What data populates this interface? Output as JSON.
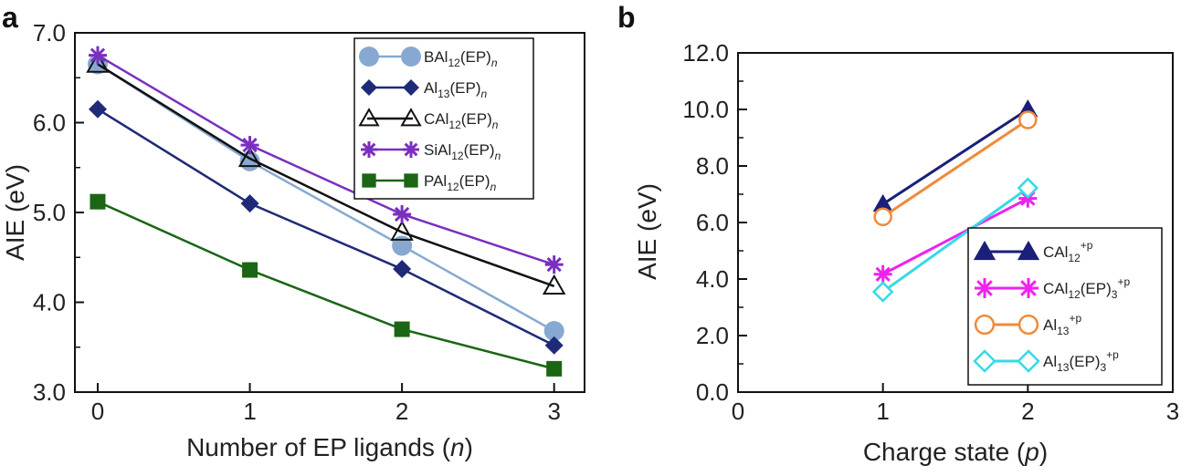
{
  "chart_data": [
    {
      "panel": "a",
      "type": "line",
      "xlabel_main": "Number of EP ligands (",
      "xlabel_var": "n",
      "xlabel_end": ")",
      "ylabel": "AIE (eV)",
      "x": [
        0,
        1,
        2,
        3
      ],
      "xticks": [
        "0",
        "1",
        "2",
        "3"
      ],
      "ylim": [
        3.0,
        7.0
      ],
      "yticks": [
        "3.0",
        "4.0",
        "5.0",
        "6.0",
        "7.0"
      ],
      "legend_position": "top-right",
      "series": [
        {
          "name": "BAl",
          "sub": "12",
          "suffix": "(EP)",
          "var": "n",
          "color": "#87a9d1",
          "marker": "circle",
          "values": [
            6.65,
            5.57,
            4.63,
            3.68
          ]
        },
        {
          "name": "Al",
          "sub": "13",
          "suffix": "(EP)",
          "var": "n",
          "color": "#1f2a78",
          "marker": "diamond",
          "values": [
            6.15,
            5.1,
            4.37,
            3.52
          ]
        },
        {
          "name": "CAl",
          "sub": "12",
          "suffix": "(EP)",
          "var": "n",
          "color": "#111111",
          "marker": "triangle-open",
          "values": [
            6.65,
            5.6,
            4.78,
            4.18
          ]
        },
        {
          "name": "SiAl",
          "sub": "12",
          "suffix": "(EP)",
          "var": "n",
          "color": "#7a2fbf",
          "marker": "asterisk",
          "values": [
            6.75,
            5.75,
            4.98,
            4.42
          ]
        },
        {
          "name": "PAl",
          "sub": "12",
          "suffix": "(EP)",
          "var": "n",
          "color": "#1a6614",
          "marker": "square",
          "values": [
            5.12,
            4.36,
            3.7,
            3.26
          ]
        }
      ]
    },
    {
      "panel": "b",
      "type": "line",
      "xlabel_main": "Charge state (",
      "xlabel_var": "p",
      "xlabel_end": ")",
      "ylabel": "AIE (eV)",
      "x": [
        1,
        2
      ],
      "xlim": [
        0,
        3
      ],
      "xticks": [
        "0",
        "1",
        "2",
        "3"
      ],
      "ylim": [
        0.0,
        12.0
      ],
      "yticks": [
        "0.0",
        "2.0",
        "4.0",
        "6.0",
        "8.0",
        "10.0",
        "12.0"
      ],
      "legend_position": "bottom-right",
      "series": [
        {
          "name": "CAl",
          "sub": "12",
          "suffix": "",
          "sub2": "",
          "sup": "+p",
          "color": "#1a1f7a",
          "marker": "triangle",
          "values": [
            6.65,
            10.0
          ]
        },
        {
          "name": "CAl",
          "sub": "12",
          "suffix": "(EP)",
          "sub2": "3",
          "sup": "+p",
          "color": "#ee22ee",
          "marker": "asterisk",
          "values": [
            4.17,
            6.85
          ]
        },
        {
          "name": "Al",
          "sub": "13",
          "suffix": "",
          "sub2": "",
          "sup": "+p",
          "color": "#f08a3a",
          "marker": "circle-open",
          "values": [
            6.2,
            9.63
          ]
        },
        {
          "name": "Al",
          "sub": "13",
          "suffix": "(EP)",
          "sub2": "3",
          "sup": "+p",
          "color": "#36d9e8",
          "marker": "diamond-open",
          "values": [
            3.55,
            7.22
          ]
        }
      ]
    }
  ]
}
